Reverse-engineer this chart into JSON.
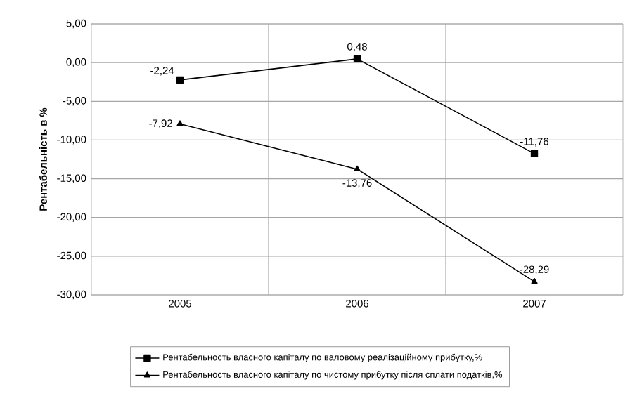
{
  "chart_data": {
    "type": "line",
    "ylabel": "Рентабельність в %",
    "categories": [
      "2005",
      "2006",
      "2007"
    ],
    "series": [
      {
        "name": "Рентабельность власного капіталу по валовому реалізаційному прибутку,%",
        "color": "#000000",
        "marker": "square",
        "values": [
          -2.24,
          0.48,
          -11.76
        ],
        "value_labels": [
          "-2,24",
          "0,48",
          "-11,76"
        ]
      },
      {
        "name": "Рентабельность власного капіталу по чистому прибутку після сплати податків,%",
        "color": "#000000",
        "marker": "triangle",
        "values": [
          -7.92,
          -13.76,
          -28.29
        ],
        "value_labels": [
          "-7,92",
          "-13,76",
          "-28,29"
        ]
      }
    ],
    "ylim": [
      -30,
      5
    ],
    "yticks": [
      {
        "value": -30,
        "label": "-30,00"
      },
      {
        "value": -25,
        "label": "-25,00"
      },
      {
        "value": -20,
        "label": "-20,00"
      },
      {
        "value": -15,
        "label": "-15,00"
      },
      {
        "value": -10,
        "label": "-10,00"
      },
      {
        "value": -5,
        "label": "-5,00"
      },
      {
        "value": 0,
        "label": "0,00"
      },
      {
        "value": 5,
        "label": "5,00"
      }
    ],
    "grid": true,
    "legend": "bottom",
    "line_style": "solid"
  }
}
